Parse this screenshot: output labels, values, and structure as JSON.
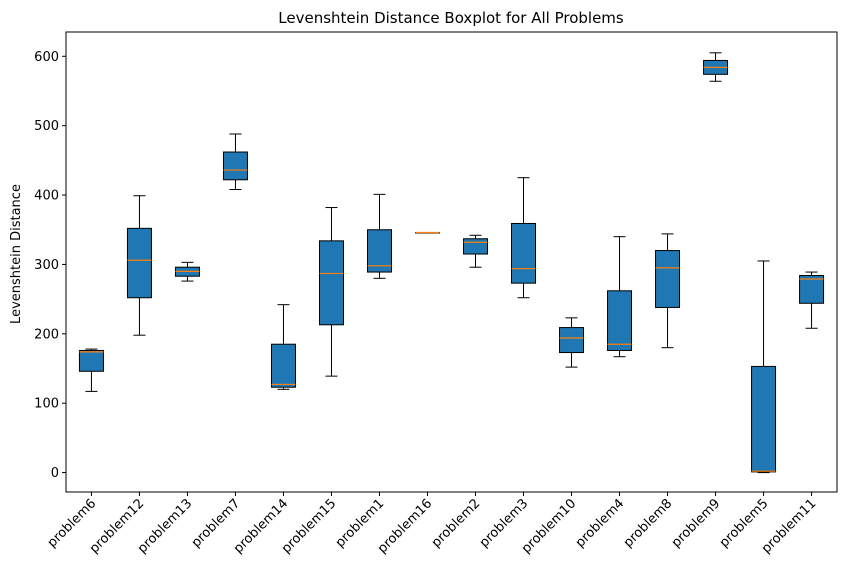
{
  "chart_data": {
    "type": "box",
    "title": "Levenshtein Distance Boxplot for All Problems",
    "xlabel": "",
    "ylabel": "Levenshtein Distance",
    "ylim": [
      -28,
      635
    ],
    "yticks": [
      0,
      100,
      200,
      300,
      400,
      500,
      600
    ],
    "grid": false,
    "box_color": "#1f77b4",
    "median_color": "#ff7f0e",
    "categories": [
      "problem6",
      "problem12",
      "problem13",
      "problem7",
      "problem14",
      "problem15",
      "problem1",
      "problem16",
      "problem2",
      "problem3",
      "problem10",
      "problem4",
      "problem8",
      "problem9",
      "problem5",
      "problem11"
    ],
    "boxes": [
      {
        "label": "problem6",
        "whislo": 117,
        "q1": 146,
        "med": 174,
        "q3": 176,
        "whishi": 178
      },
      {
        "label": "problem12",
        "whislo": 198,
        "q1": 252,
        "med": 306,
        "q3": 352,
        "whishi": 399
      },
      {
        "label": "problem13",
        "whislo": 276,
        "q1": 283,
        "med": 290,
        "q3": 296,
        "whishi": 303
      },
      {
        "label": "problem7",
        "whislo": 408,
        "q1": 422,
        "med": 436,
        "q3": 462,
        "whishi": 488
      },
      {
        "label": "problem14",
        "whislo": 120,
        "q1": 123,
        "med": 127,
        "q3": 185,
        "whishi": 242
      },
      {
        "label": "problem15",
        "whislo": 139,
        "q1": 213,
        "med": 287,
        "q3": 334,
        "whishi": 382
      },
      {
        "label": "problem1",
        "whislo": 280,
        "q1": 289,
        "med": 298,
        "q3": 350,
        "whishi": 401
      },
      {
        "label": "problem16",
        "whislo": 346,
        "q1": 346,
        "med": 346,
        "q3": 346,
        "whishi": 346
      },
      {
        "label": "problem2",
        "whislo": 296,
        "q1": 315,
        "med": 332,
        "q3": 337,
        "whishi": 342
      },
      {
        "label": "problem3",
        "whislo": 252,
        "q1": 273,
        "med": 294,
        "q3": 359,
        "whishi": 425
      },
      {
        "label": "problem10",
        "whislo": 152,
        "q1": 173,
        "med": 194,
        "q3": 209,
        "whishi": 223
      },
      {
        "label": "problem4",
        "whislo": 167,
        "q1": 176,
        "med": 185,
        "q3": 262,
        "whishi": 340
      },
      {
        "label": "problem8",
        "whislo": 180,
        "q1": 238,
        "med": 295,
        "q3": 320,
        "whishi": 344
      },
      {
        "label": "problem9",
        "whislo": 564,
        "q1": 574,
        "med": 584,
        "q3": 594,
        "whishi": 605
      },
      {
        "label": "problem5",
        "whislo": 0,
        "q1": 1,
        "med": 2,
        "q3": 153,
        "whishi": 305
      },
      {
        "label": "problem11",
        "whislo": 208,
        "q1": 244,
        "med": 279,
        "q3": 284,
        "whishi": 289
      }
    ]
  }
}
